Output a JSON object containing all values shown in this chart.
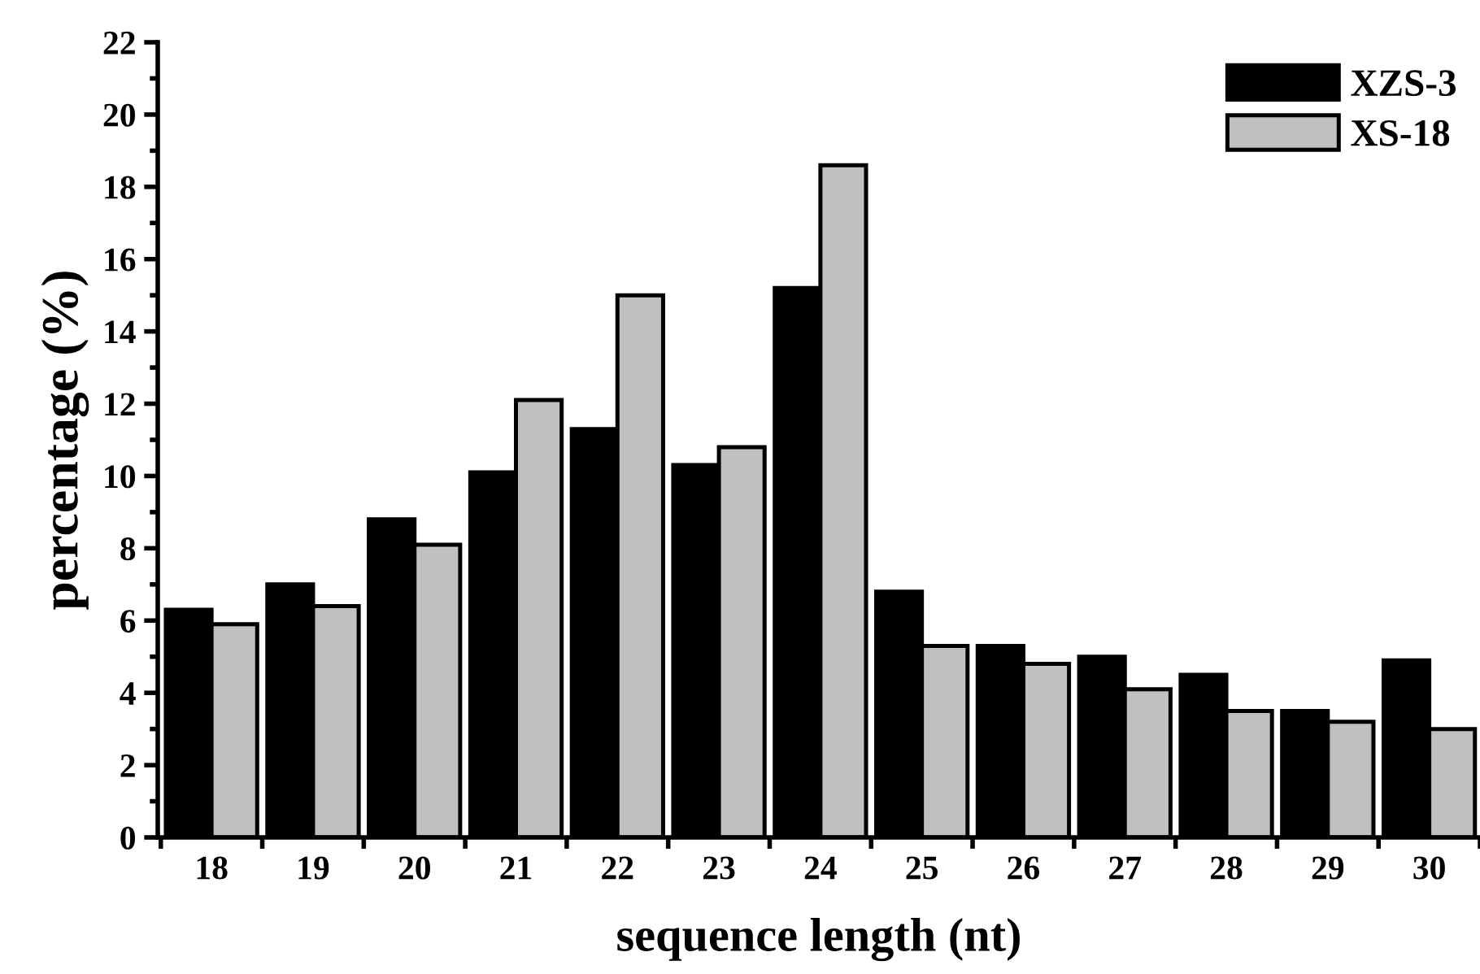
{
  "chart_data": {
    "type": "bar",
    "xlabel": "sequence length (nt)",
    "ylabel": "percentage (%)",
    "categories": [
      "18",
      "19",
      "20",
      "21",
      "22",
      "23",
      "24",
      "25",
      "26",
      "27",
      "28",
      "29",
      "30"
    ],
    "series": [
      {
        "name": "XZS-3",
        "color": "#000000",
        "values": [
          6.3,
          7.0,
          8.8,
          10.1,
          11.3,
          10.3,
          15.2,
          6.8,
          5.3,
          5.0,
          4.5,
          3.5,
          4.9
        ]
      },
      {
        "name": "XS-18",
        "color": "#c0c0c0",
        "values": [
          5.9,
          6.4,
          8.1,
          12.1,
          15.0,
          10.8,
          18.6,
          5.3,
          4.8,
          4.1,
          3.5,
          3.2,
          3.0
        ]
      }
    ],
    "ylim": [
      0,
      22
    ],
    "yticks": [
      0,
      2,
      4,
      6,
      8,
      10,
      12,
      14,
      16,
      18,
      20,
      22
    ],
    "grid": false,
    "legend": "top right"
  }
}
